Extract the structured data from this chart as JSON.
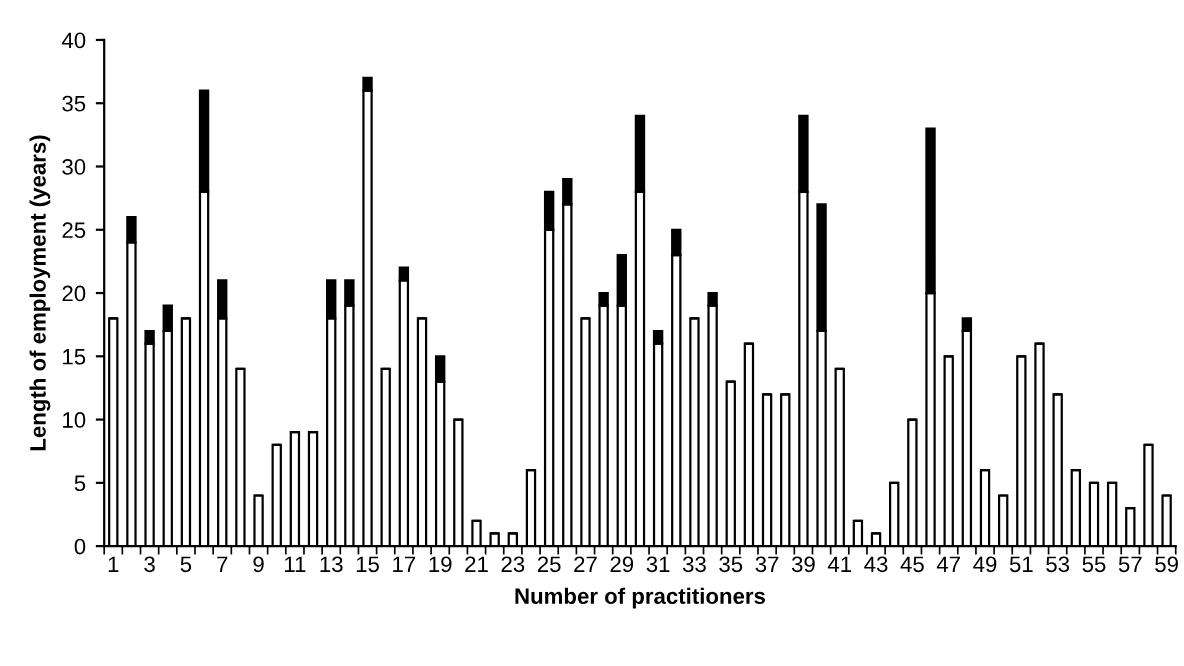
{
  "chart_data": {
    "type": "bar",
    "stacked": true,
    "xlabel": "Number of practitioners",
    "ylabel": "Length of employment (years)",
    "categories": [
      "1",
      null,
      "3",
      null,
      "5",
      null,
      "7",
      null,
      "9",
      null,
      "11",
      null,
      "13",
      null,
      "15",
      null,
      "17",
      null,
      "19",
      null,
      "21",
      null,
      "23",
      null,
      "25",
      null,
      "27",
      null,
      "29",
      null,
      "31",
      null,
      "33",
      null,
      "35",
      null,
      "37",
      null,
      "39",
      null,
      "41",
      null,
      "43",
      null,
      "45",
      null,
      "47",
      null,
      "49",
      null,
      "51",
      null,
      "53",
      null,
      "55",
      null,
      "57",
      null,
      "59"
    ],
    "series": [
      {
        "color": "#ffffff",
        "values": [
          18,
          24,
          16,
          17,
          18,
          28,
          18,
          14,
          4,
          8,
          9,
          9,
          18,
          19,
          36,
          14,
          21,
          18,
          13,
          10,
          2,
          1,
          1,
          6,
          25,
          27,
          18,
          19,
          19,
          28,
          16,
          23,
          18,
          19,
          13,
          16,
          12,
          12,
          28,
          17,
          14,
          2,
          1,
          5,
          10,
          20,
          15,
          17,
          6,
          4,
          15,
          16,
          12,
          6,
          5,
          5,
          3,
          8,
          4
        ]
      },
      {
        "color": "#000000",
        "values": [
          0,
          2,
          1,
          2,
          0,
          8,
          3,
          0,
          0,
          0,
          0,
          0,
          3,
          2,
          1,
          0,
          1,
          0,
          2,
          0,
          0,
          0,
          0,
          0,
          3,
          2,
          0,
          1,
          4,
          6,
          1,
          2,
          0,
          1,
          0,
          0,
          0,
          0,
          6,
          10,
          0,
          0,
          0,
          0,
          0,
          13,
          0,
          1,
          0,
          0,
          0,
          0,
          0,
          0,
          0,
          0,
          0,
          0,
          0
        ]
      }
    ],
    "ylim": [
      0,
      40
    ],
    "yticks": [
      0,
      5,
      10,
      15,
      20,
      25,
      30,
      35,
      40
    ],
    "grid": false,
    "legend": false
  }
}
